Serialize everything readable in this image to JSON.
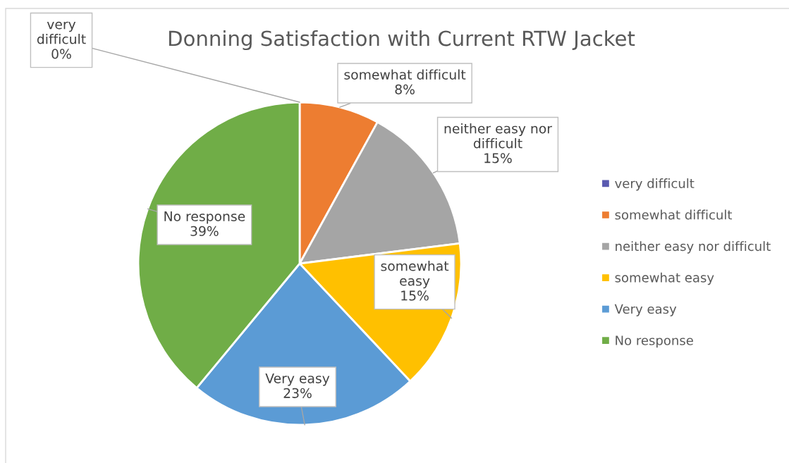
{
  "chart_data": {
    "type": "pie",
    "title": "Donning Satisfaction with Current RTW Jacket",
    "categories": [
      "very difficult",
      "somewhat difficult",
      "neither easy nor difficult",
      "somewhat easy",
      "Very easy",
      "No response"
    ],
    "values": [
      0,
      8,
      15,
      15,
      23,
      39
    ],
    "colors": [
      "#5a5ab0",
      "#ed7d31",
      "#a5a5a5",
      "#ffc000",
      "#5b9bd5",
      "#70ad47"
    ],
    "value_labels": [
      "0%",
      "8%",
      "15%",
      "15%",
      "23%",
      "39%"
    ],
    "legend": "right"
  }
}
